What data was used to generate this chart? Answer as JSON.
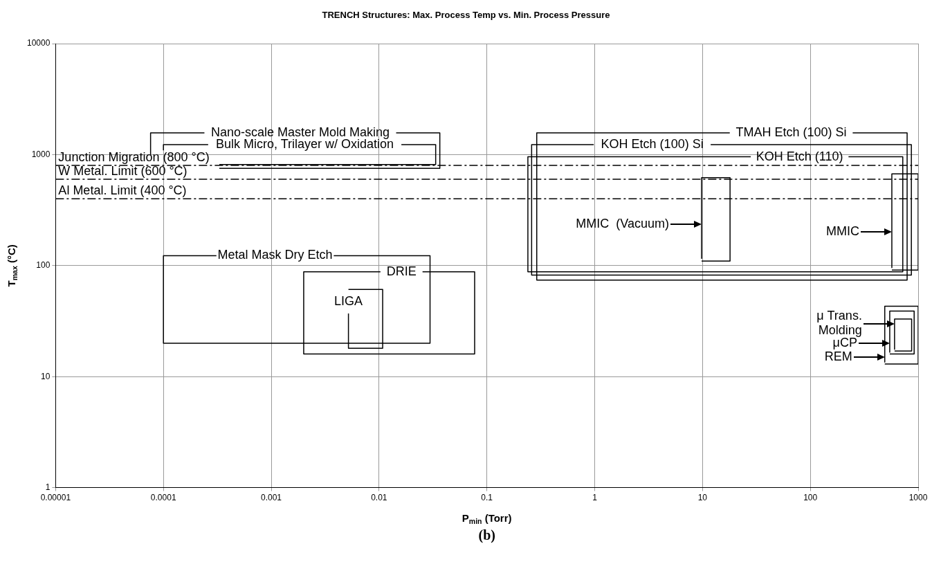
{
  "chart_data": {
    "type": "line",
    "title": "TRENCH Structures: Max. Process Temp vs. Min. Process Pressure",
    "xlabel": "P$_{min}$ (Torr)",
    "ylabel": "T$_{max}$ (°C)",
    "log": "xy",
    "xlim": [
      1e-05,
      1000
    ],
    "ylim": [
      1,
      10000
    ],
    "xticks": [
      {
        "value": 1e-05,
        "label": "0.00001"
      },
      0.0001,
      0.001,
      0.01,
      0.1,
      1,
      10,
      100,
      1000
    ],
    "yticks": [
      1,
      10,
      100,
      1000,
      10000
    ],
    "grid": true,
    "legend": false,
    "marker": "none",
    "line_style": "solid",
    "series": [
      {
        "name": "Nano-scale Master Mold Making",
        "color": "#000000",
        "x": [
          0.0144,
          0.0366,
          0.0366,
          0.00033,
          null,
          7.6e-05,
          7.6e-05,
          0.00024
        ],
        "values": [
          1570,
          1570,
          752,
          752,
          null,
          1000,
          1570,
          1570
        ]
      },
      {
        "name": "Bulk Micro, Trilayer w/ Oxidation",
        "color": "#000000",
        "x": [
          0.0161,
          0.0335,
          0.0335,
          0.00033,
          null,
          0.0001,
          0.0001,
          0.00026
        ],
        "values": [
          1230,
          1230,
          813,
          813,
          null,
          1094,
          1230,
          1230
        ]
      },
      {
        "name": "Metal Mask Dry Etch",
        "color": "#000000",
        "x": [
          0.0038,
          0.0297,
          0.0297,
          0.0001,
          0.0001,
          0.00031
        ],
        "values": [
          123,
          123,
          20,
          20,
          123,
          123
        ]
      },
      {
        "name": "DRIE",
        "color": "#000000",
        "x": [
          0.0253,
          0.077,
          0.077,
          0.002,
          0.002,
          0.0103
        ],
        "values": [
          88,
          88,
          16,
          16,
          88,
          88
        ]
      },
      {
        "name": "LIGA",
        "color": "#000000",
        "x": [
          0.0052,
          0.0108,
          0.0108,
          0.0052,
          0.0052
        ],
        "values": [
          61,
          61,
          18,
          18,
          37
        ]
      },
      {
        "name": "TMAH Etch (100) Si",
        "color": "#000000",
        "x": [
          247,
          790,
          790,
          0.29,
          0.29,
          17.9
        ],
        "values": [
          1570,
          1570,
          74,
          74,
          1570,
          1570
        ]
      },
      {
        "name": "KOH Etch (100) Si",
        "color": "#000000",
        "x": [
          11.9,
          865,
          865,
          0.26,
          0.26,
          0.98
        ],
        "values": [
          1230,
          1230,
          82,
          82,
          1230,
          1230
        ]
      },
      {
        "name": "KOH Etch (110)",
        "color": "#000000",
        "x": [
          226,
          720,
          720,
          0.24,
          0.24,
          28
        ],
        "values": [
          955,
          955,
          88,
          88,
          955,
          955
        ]
      },
      {
        "color": "#000000",
        "x": [
          9.8,
          18,
          18,
          9.8,
          9.8
        ],
        "values": [
          110,
          110,
          620,
          620,
          116
        ]
      },
      {
        "color": "#000000",
        "x": [
          570,
          1000,
          1000,
          570,
          570
        ],
        "values": [
          91,
          91,
          670,
          670,
          96
        ]
      },
      {
        "color": "#000000",
        "x": [
          490,
          1000,
          1000,
          490,
          490
        ],
        "values": [
          13,
          13,
          43,
          43,
          13.5
        ]
      },
      {
        "color": "#000000",
        "x": [
          545,
          918,
          918,
          545,
          545
        ],
        "values": [
          16,
          16,
          39,
          39,
          16.6
        ]
      },
      {
        "color": "#000000",
        "x": [
          604,
          870,
          870,
          604,
          604
        ],
        "values": [
          17,
          17,
          33,
          33,
          17.6
        ]
      }
    ],
    "ref_lines": [
      {
        "axis": "y",
        "value": 800,
        "label": "Junction Migration (800 °C)",
        "color": "#000000",
        "line_style": "dashdot"
      },
      {
        "axis": "y",
        "value": 600,
        "label": "W Metal. Limit (600 °C)",
        "color": "#000000",
        "line_style": "dashdot"
      },
      {
        "axis": "y",
        "value": 400,
        "label": "Al Metal. Limit (400 °C)",
        "color": "#000000",
        "line_style": "dashdot"
      }
    ],
    "annotations": [
      {
        "text": "MMIC  (Vacuum)",
        "x": 9.8,
        "y": 235
      },
      {
        "text": "MMIC",
        "x": 570,
        "y": 202
      },
      {
        "text": "μ Trans.\nMolding",
        "x": 604,
        "y": 30
      },
      {
        "text": "μCP",
        "x": 545,
        "y": 20
      },
      {
        "text": "REM",
        "x": 490,
        "y": 15
      },
      "(b)"
    ]
  }
}
